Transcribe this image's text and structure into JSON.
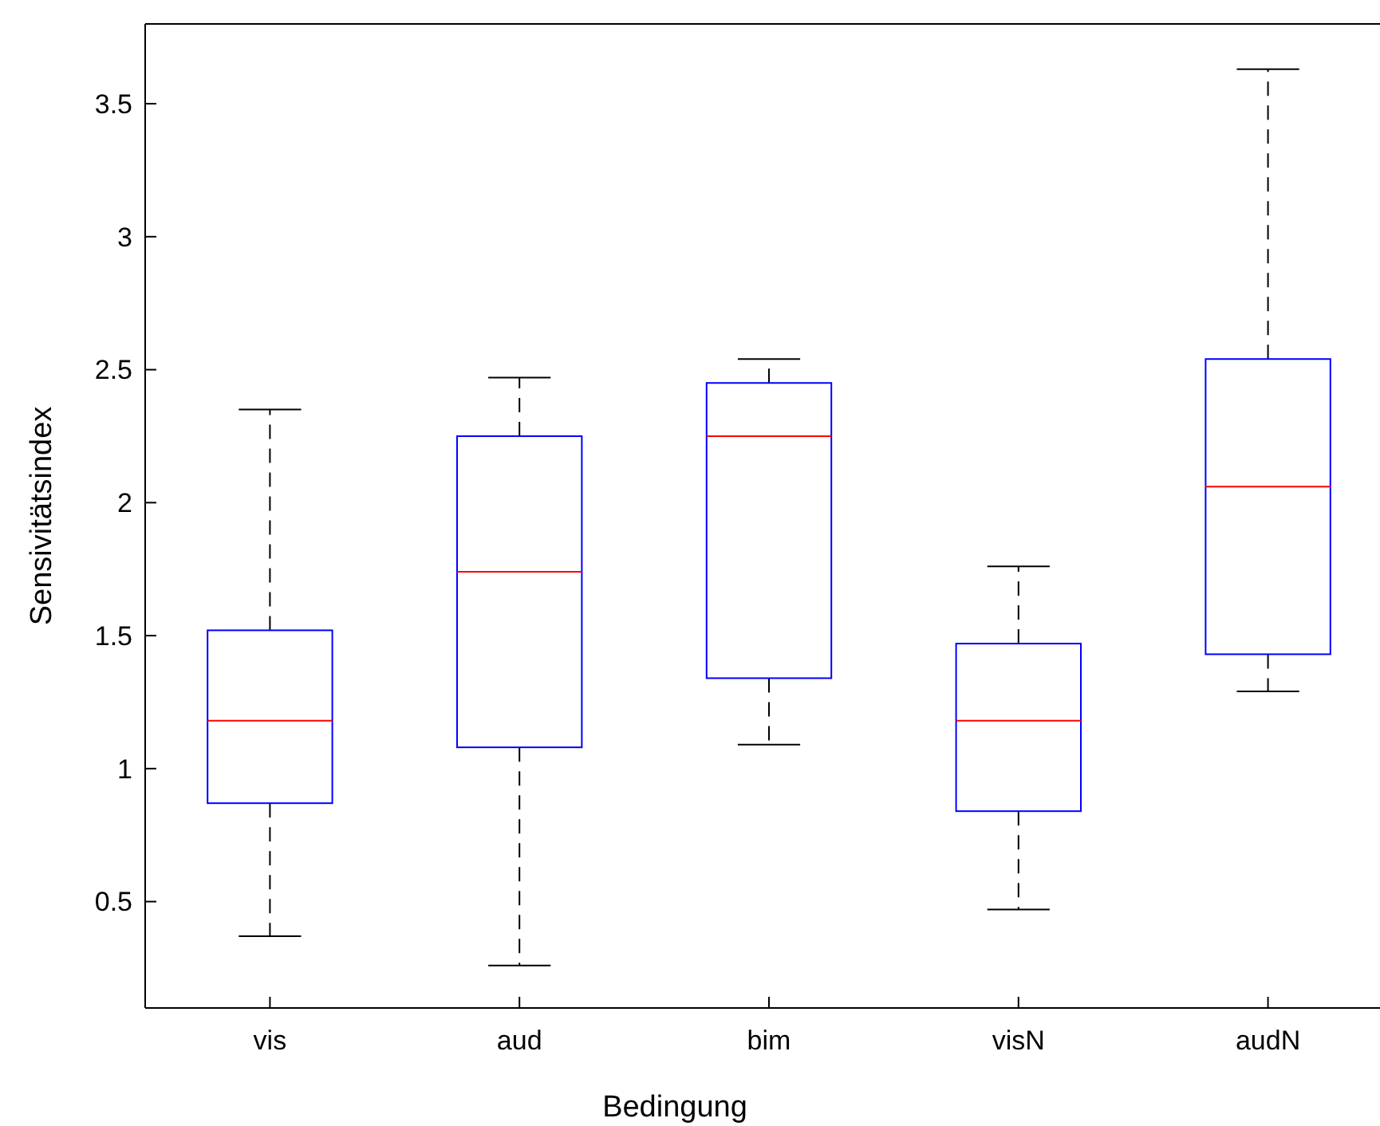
{
  "chart_data": {
    "type": "box",
    "xlabel": "Bedingung",
    "ylabel": "Sensivitätsindex",
    "categories": [
      "vis",
      "aud",
      "bim",
      "visN",
      "audN"
    ],
    "boxes": [
      {
        "low": 0.37,
        "q1": 0.87,
        "median": 1.18,
        "q3": 1.52,
        "high": 2.35
      },
      {
        "low": 0.26,
        "q1": 1.08,
        "median": 1.74,
        "q3": 2.25,
        "high": 2.47
      },
      {
        "low": 1.09,
        "q1": 1.34,
        "median": 2.25,
        "q3": 2.45,
        "high": 2.54
      },
      {
        "low": 0.47,
        "q1": 0.84,
        "median": 1.18,
        "q3": 1.47,
        "high": 1.76
      },
      {
        "low": 1.29,
        "q1": 1.43,
        "median": 2.06,
        "q3": 2.54,
        "high": 3.63
      }
    ],
    "color": "#0000ff",
    "ylim": [
      0.1,
      3.8
    ],
    "yticks": [
      0.5,
      1,
      1.5,
      2,
      2.5,
      3,
      3.5
    ],
    "grid": false
  }
}
